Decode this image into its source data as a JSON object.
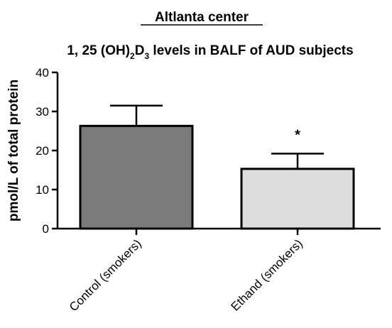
{
  "chart_data": {
    "type": "bar",
    "header": "Altlanta center",
    "title": {
      "prefix": "1, 25 (OH)",
      "sub1": "2",
      "mid": "D",
      "sub2": "3",
      "suffix": " levels in BALF of AUD subjects"
    },
    "xlabel": "",
    "ylabel": "pmol/L of total protein",
    "ylim": [
      0,
      40
    ],
    "yticks": [
      0,
      10,
      20,
      30,
      40
    ],
    "categories": [
      "Control (smokers)",
      "Ethand (smokers)"
    ],
    "values": [
      26.3,
      15.3
    ],
    "error_plus": [
      5.2,
      3.9
    ],
    "bar_colors": [
      "#7a7a7a",
      "#dcdcdc"
    ],
    "annotations": [
      {
        "category_index": 1,
        "text": "*"
      }
    ],
    "grid": false,
    "legend": "none"
  }
}
